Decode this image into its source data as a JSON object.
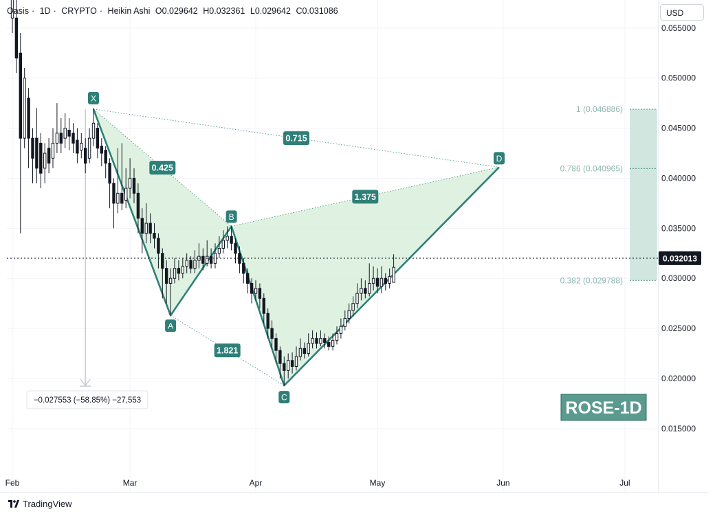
{
  "header": {
    "symbol": "Oasis",
    "interval": "1D",
    "exchange": "CRYPTO",
    "chart_style": "Heikin Ashi",
    "open": "O0.029642",
    "high": "H0.032361",
    "low": "L0.029642",
    "close": "C0.031086"
  },
  "currency_button": "USD",
  "watermark": "ROSE-1D",
  "branding": "TradingView",
  "measure_label": "−0.027553 (−58.85%) −27,553",
  "last_price_label": "0.032013",
  "colors": {
    "pattern_line": "#2e7f78",
    "pattern_fill": "#d7efd9",
    "label_bg": "#2e7f78",
    "candle": "#131722",
    "fib_zone": "#cde3dd",
    "fib_text": "#8fb7ae"
  },
  "chart_data": {
    "type": "candlestick",
    "chart_style": "Heikin Ashi",
    "x_ticks": [
      "Feb",
      "Mar",
      "Apr",
      "May",
      "Jun",
      "Jul"
    ],
    "y_ticks": [
      "0.055000",
      "0.050000",
      "0.045000",
      "0.040000",
      "0.035000",
      "0.030000",
      "0.025000",
      "0.020000",
      "0.015000"
    ],
    "ylim": [
      0.0106,
      0.0578
    ],
    "last_price": 0.032013,
    "pattern": {
      "name": "harmonic XABCD",
      "points": [
        {
          "label": "X",
          "date": "2024-02-21",
          "price": 0.0469
        },
        {
          "label": "A",
          "date": "2024-03-11",
          "price": 0.0263
        },
        {
          "label": "B",
          "date": "2024-03-26",
          "price": 0.0352
        },
        {
          "label": "C",
          "date": "2024-04-08",
          "price": 0.0193
        },
        {
          "label": "D",
          "date": "2024-05-31",
          "price": 0.0411
        }
      ],
      "ratios": [
        {
          "label": "0.425",
          "between": "XA-AB"
        },
        {
          "label": "0.715",
          "between": "XD"
        },
        {
          "label": "1.375",
          "between": "BD"
        },
        {
          "label": "1.821",
          "between": "AC"
        }
      ]
    },
    "fib_levels": [
      {
        "label": "1 (0.046886)",
        "price": 0.046886
      },
      {
        "label": "0.786 (0.040965)",
        "price": 0.040965
      },
      {
        "label": "0.382 (0.029788)",
        "price": 0.029788
      }
    ],
    "measure": {
      "from_date": "2024-02-19",
      "from_price": 0.0469,
      "to_price": 0.0193
    },
    "candles": [
      {
        "d": "2024-02-01",
        "o": 0.056,
        "c": 0.059,
        "h": 0.06,
        "l": 0.0545
      },
      {
        "d": "2024-02-02",
        "o": 0.056,
        "c": 0.052,
        "h": 0.058,
        "l": 0.0505
      },
      {
        "d": "2024-02-03",
        "o": 0.0525,
        "c": 0.044,
        "h": 0.0545,
        "l": 0.0345
      },
      {
        "d": "2024-02-04",
        "o": 0.044,
        "c": 0.05,
        "h": 0.051,
        "l": 0.043
      },
      {
        "d": "2024-02-05",
        "o": 0.048,
        "c": 0.044,
        "h": 0.049,
        "l": 0.041
      },
      {
        "d": "2024-02-06",
        "o": 0.044,
        "c": 0.042,
        "h": 0.045,
        "l": 0.0395
      },
      {
        "d": "2024-02-07",
        "o": 0.044,
        "c": 0.041,
        "h": 0.047,
        "l": 0.0395
      },
      {
        "d": "2024-02-08",
        "o": 0.0435,
        "c": 0.0405,
        "h": 0.0445,
        "l": 0.039
      },
      {
        "d": "2024-02-09",
        "o": 0.041,
        "c": 0.0425,
        "h": 0.0435,
        "l": 0.0395
      },
      {
        "d": "2024-02-10",
        "o": 0.043,
        "c": 0.0415,
        "h": 0.044,
        "l": 0.0405
      },
      {
        "d": "2024-02-11",
        "o": 0.042,
        "c": 0.0435,
        "h": 0.045,
        "l": 0.041
      },
      {
        "d": "2024-02-12",
        "o": 0.0435,
        "c": 0.0445,
        "h": 0.0475,
        "l": 0.0425
      },
      {
        "d": "2024-02-13",
        "o": 0.0445,
        "c": 0.0435,
        "h": 0.046,
        "l": 0.0425
      },
      {
        "d": "2024-02-14",
        "o": 0.044,
        "c": 0.045,
        "h": 0.0465,
        "l": 0.043
      },
      {
        "d": "2024-02-15",
        "o": 0.0448,
        "c": 0.0442,
        "h": 0.046,
        "l": 0.0428
      },
      {
        "d": "2024-02-16",
        "o": 0.0445,
        "c": 0.0435,
        "h": 0.0455,
        "l": 0.0425
      },
      {
        "d": "2024-02-17",
        "o": 0.0438,
        "c": 0.0425,
        "h": 0.045,
        "l": 0.0415
      },
      {
        "d": "2024-02-18",
        "o": 0.0428,
        "c": 0.0435,
        "h": 0.0445,
        "l": 0.042
      },
      {
        "d": "2024-02-19",
        "o": 0.043,
        "c": 0.0415,
        "h": 0.044,
        "l": 0.0405
      },
      {
        "d": "2024-02-20",
        "o": 0.042,
        "c": 0.044,
        "h": 0.045,
        "l": 0.0415
      },
      {
        "d": "2024-02-21",
        "o": 0.044,
        "c": 0.0455,
        "h": 0.047,
        "l": 0.0432
      },
      {
        "d": "2024-02-22",
        "o": 0.045,
        "c": 0.043,
        "h": 0.0455,
        "l": 0.042
      },
      {
        "d": "2024-02-23",
        "o": 0.0432,
        "c": 0.0425,
        "h": 0.044,
        "l": 0.0412
      },
      {
        "d": "2024-02-24",
        "o": 0.0428,
        "c": 0.0415,
        "h": 0.0432,
        "l": 0.04
      },
      {
        "d": "2024-02-25",
        "o": 0.0415,
        "c": 0.0395,
        "h": 0.042,
        "l": 0.037
      },
      {
        "d": "2024-02-26",
        "o": 0.0395,
        "c": 0.0375,
        "h": 0.04,
        "l": 0.035
      },
      {
        "d": "2024-02-27",
        "o": 0.0375,
        "c": 0.0385,
        "h": 0.043,
        "l": 0.0365
      },
      {
        "d": "2024-02-28",
        "o": 0.0385,
        "c": 0.0375,
        "h": 0.0435,
        "l": 0.0368
      },
      {
        "d": "2024-02-29",
        "o": 0.0378,
        "c": 0.039,
        "h": 0.041,
        "l": 0.037
      },
      {
        "d": "2024-03-01",
        "o": 0.039,
        "c": 0.04,
        "h": 0.042,
        "l": 0.038
      },
      {
        "d": "2024-03-02",
        "o": 0.04,
        "c": 0.0385,
        "h": 0.041,
        "l": 0.0375
      },
      {
        "d": "2024-03-03",
        "o": 0.0385,
        "c": 0.036,
        "h": 0.0395,
        "l": 0.0345
      },
      {
        "d": "2024-03-04",
        "o": 0.036,
        "c": 0.0345,
        "h": 0.037,
        "l": 0.0325
      },
      {
        "d": "2024-03-05",
        "o": 0.0345,
        "c": 0.0355,
        "h": 0.0375,
        "l": 0.0335
      },
      {
        "d": "2024-03-06",
        "o": 0.0355,
        "c": 0.0345,
        "h": 0.0365,
        "l": 0.0335
      },
      {
        "d": "2024-03-07",
        "o": 0.0345,
        "c": 0.034,
        "h": 0.0355,
        "l": 0.033
      },
      {
        "d": "2024-03-08",
        "o": 0.034,
        "c": 0.0325,
        "h": 0.0345,
        "l": 0.031
      },
      {
        "d": "2024-03-09",
        "o": 0.0325,
        "c": 0.031,
        "h": 0.033,
        "l": 0.028
      },
      {
        "d": "2024-03-10",
        "o": 0.031,
        "c": 0.0295,
        "h": 0.0318,
        "l": 0.0275
      },
      {
        "d": "2024-03-11",
        "o": 0.0295,
        "c": 0.03,
        "h": 0.031,
        "l": 0.0263
      },
      {
        "d": "2024-03-12",
        "o": 0.03,
        "c": 0.031,
        "h": 0.032,
        "l": 0.0295
      },
      {
        "d": "2024-03-13",
        "o": 0.031,
        "c": 0.0305,
        "h": 0.0318,
        "l": 0.0298
      },
      {
        "d": "2024-03-14",
        "o": 0.0305,
        "c": 0.0312,
        "h": 0.032,
        "l": 0.03
      },
      {
        "d": "2024-03-15",
        "o": 0.0312,
        "c": 0.0318,
        "h": 0.0325,
        "l": 0.0305
      },
      {
        "d": "2024-03-16",
        "o": 0.0318,
        "c": 0.031,
        "h": 0.0322,
        "l": 0.0305
      },
      {
        "d": "2024-03-17",
        "o": 0.031,
        "c": 0.0318,
        "h": 0.0328,
        "l": 0.0305
      },
      {
        "d": "2024-03-18",
        "o": 0.0318,
        "c": 0.0322,
        "h": 0.0335,
        "l": 0.031
      },
      {
        "d": "2024-03-19",
        "o": 0.0322,
        "c": 0.0315,
        "h": 0.033,
        "l": 0.0308
      },
      {
        "d": "2024-03-20",
        "o": 0.0315,
        "c": 0.0322,
        "h": 0.0338,
        "l": 0.0312
      },
      {
        "d": "2024-03-21",
        "o": 0.0322,
        "c": 0.0315,
        "h": 0.033,
        "l": 0.031
      },
      {
        "d": "2024-03-22",
        "o": 0.0315,
        "c": 0.0325,
        "h": 0.0335,
        "l": 0.031
      },
      {
        "d": "2024-03-23",
        "o": 0.0325,
        "c": 0.033,
        "h": 0.0342,
        "l": 0.032
      },
      {
        "d": "2024-03-24",
        "o": 0.033,
        "c": 0.0338,
        "h": 0.0348,
        "l": 0.0325
      },
      {
        "d": "2024-03-25",
        "o": 0.0338,
        "c": 0.0342,
        "h": 0.0352,
        "l": 0.033
      },
      {
        "d": "2024-03-26",
        "o": 0.0342,
        "c": 0.0335,
        "h": 0.0352,
        "l": 0.0328
      },
      {
        "d": "2024-03-27",
        "o": 0.0335,
        "c": 0.0325,
        "h": 0.034,
        "l": 0.0315
      },
      {
        "d": "2024-03-28",
        "o": 0.0325,
        "c": 0.0315,
        "h": 0.0332,
        "l": 0.0305
      },
      {
        "d": "2024-03-29",
        "o": 0.0315,
        "c": 0.0305,
        "h": 0.032,
        "l": 0.0295
      },
      {
        "d": "2024-03-30",
        "o": 0.0305,
        "c": 0.0295,
        "h": 0.031,
        "l": 0.0285
      },
      {
        "d": "2024-03-31",
        "o": 0.0295,
        "c": 0.0285,
        "h": 0.03,
        "l": 0.0275
      },
      {
        "d": "2024-04-01",
        "o": 0.0285,
        "c": 0.029,
        "h": 0.0298,
        "l": 0.0278
      },
      {
        "d": "2024-04-02",
        "o": 0.029,
        "c": 0.028,
        "h": 0.0295,
        "l": 0.027
      },
      {
        "d": "2024-04-03",
        "o": 0.028,
        "c": 0.0265,
        "h": 0.0285,
        "l": 0.0255
      },
      {
        "d": "2024-04-04",
        "o": 0.0265,
        "c": 0.025,
        "h": 0.027,
        "l": 0.024
      },
      {
        "d": "2024-04-05",
        "o": 0.025,
        "c": 0.024,
        "h": 0.0258,
        "l": 0.023
      },
      {
        "d": "2024-04-06",
        "o": 0.024,
        "c": 0.0228,
        "h": 0.0245,
        "l": 0.0215
      },
      {
        "d": "2024-04-07",
        "o": 0.0228,
        "c": 0.0215,
        "h": 0.0232,
        "l": 0.02
      },
      {
        "d": "2024-04-08",
        "o": 0.0215,
        "c": 0.0208,
        "h": 0.0222,
        "l": 0.0193
      },
      {
        "d": "2024-04-09",
        "o": 0.0208,
        "c": 0.0218,
        "h": 0.0225,
        "l": 0.02
      },
      {
        "d": "2024-04-10",
        "o": 0.0218,
        "c": 0.0212,
        "h": 0.0226,
        "l": 0.0205
      },
      {
        "d": "2024-04-11",
        "o": 0.0212,
        "c": 0.0222,
        "h": 0.0232,
        "l": 0.0208
      },
      {
        "d": "2024-04-12",
        "o": 0.0222,
        "c": 0.023,
        "h": 0.024,
        "l": 0.0218
      },
      {
        "d": "2024-04-13",
        "o": 0.023,
        "c": 0.0225,
        "h": 0.0236,
        "l": 0.022
      },
      {
        "d": "2024-04-14",
        "o": 0.0225,
        "c": 0.0235,
        "h": 0.0245,
        "l": 0.0222
      },
      {
        "d": "2024-04-15",
        "o": 0.0235,
        "c": 0.024,
        "h": 0.0248,
        "l": 0.023
      },
      {
        "d": "2024-04-16",
        "o": 0.024,
        "c": 0.0235,
        "h": 0.0246,
        "l": 0.023
      },
      {
        "d": "2024-04-17",
        "o": 0.0235,
        "c": 0.024,
        "h": 0.0248,
        "l": 0.0232
      },
      {
        "d": "2024-04-18",
        "o": 0.024,
        "c": 0.0236,
        "h": 0.0245,
        "l": 0.023
      },
      {
        "d": "2024-04-19",
        "o": 0.0236,
        "c": 0.0232,
        "h": 0.0242,
        "l": 0.0228
      },
      {
        "d": "2024-04-20",
        "o": 0.0232,
        "c": 0.0238,
        "h": 0.0245,
        "l": 0.0228
      },
      {
        "d": "2024-04-21",
        "o": 0.0238,
        "c": 0.0245,
        "h": 0.0252,
        "l": 0.0234
      },
      {
        "d": "2024-04-22",
        "o": 0.0245,
        "c": 0.0252,
        "h": 0.026,
        "l": 0.024
      },
      {
        "d": "2024-04-23",
        "o": 0.0252,
        "c": 0.026,
        "h": 0.0268,
        "l": 0.0248
      },
      {
        "d": "2024-04-24",
        "o": 0.026,
        "c": 0.0268,
        "h": 0.0275,
        "l": 0.0255
      },
      {
        "d": "2024-04-25",
        "o": 0.0268,
        "c": 0.0275,
        "h": 0.0282,
        "l": 0.0262
      },
      {
        "d": "2024-04-26",
        "o": 0.0275,
        "c": 0.0285,
        "h": 0.0295,
        "l": 0.027
      },
      {
        "d": "2024-04-27",
        "o": 0.0285,
        "c": 0.029,
        "h": 0.03,
        "l": 0.0278
      },
      {
        "d": "2024-04-28",
        "o": 0.029,
        "c": 0.0285,
        "h": 0.0298,
        "l": 0.028
      },
      {
        "d": "2024-04-29",
        "o": 0.0285,
        "c": 0.0295,
        "h": 0.0315,
        "l": 0.0282
      },
      {
        "d": "2024-04-30",
        "o": 0.0295,
        "c": 0.03,
        "h": 0.0312,
        "l": 0.0288
      },
      {
        "d": "2024-05-01",
        "o": 0.03,
        "c": 0.0292,
        "h": 0.031,
        "l": 0.0285
      },
      {
        "d": "2024-05-02",
        "o": 0.0292,
        "c": 0.03,
        "h": 0.0312,
        "l": 0.0285
      },
      {
        "d": "2024-05-03",
        "o": 0.03,
        "c": 0.0295,
        "h": 0.0305,
        "l": 0.0288
      },
      {
        "d": "2024-05-04",
        "o": 0.0295,
        "c": 0.0302,
        "h": 0.031,
        "l": 0.029
      },
      {
        "d": "2024-05-05",
        "o": 0.0296,
        "c": 0.0311,
        "h": 0.0324,
        "l": 0.0296
      }
    ]
  }
}
